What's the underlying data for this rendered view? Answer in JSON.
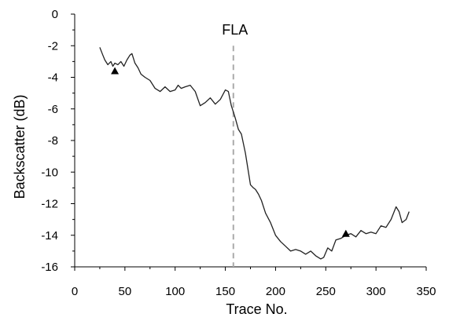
{
  "chart_data": {
    "type": "line",
    "title": "",
    "xlabel": "Trace No.",
    "ylabel": "Backscatter (dB)",
    "xlim": [
      0,
      350
    ],
    "ylim": [
      -16,
      0
    ],
    "x_ticks": [
      0,
      50,
      100,
      150,
      200,
      250,
      300,
      350
    ],
    "y_ticks": [
      0,
      -2,
      -4,
      -6,
      -8,
      -10,
      -12,
      -14,
      -16
    ],
    "grid": false,
    "legend": "none",
    "line_color": "#222222",
    "series": [
      {
        "x": [
          25,
          28,
          30,
          33,
          36,
          38,
          40,
          43,
          46,
          49,
          52,
          55,
          57,
          60,
          63,
          66,
          70,
          75,
          80,
          85,
          90,
          95,
          100,
          103,
          106,
          110,
          115,
          120,
          125,
          130,
          135,
          140,
          145,
          150,
          153,
          156,
          158,
          160,
          163,
          166,
          170,
          175,
          178,
          180,
          183,
          186,
          190,
          195,
          200,
          205,
          210,
          215,
          220,
          225,
          230,
          235,
          240,
          245,
          248,
          252,
          256,
          260,
          265,
          270,
          275,
          280,
          285,
          290,
          295,
          300,
          305,
          310,
          315,
          320,
          323,
          326,
          330,
          333
        ],
        "y": [
          -2.1,
          -2.6,
          -2.9,
          -3.2,
          -3.0,
          -3.3,
          -3.1,
          -3.2,
          -3.0,
          -3.3,
          -2.9,
          -2.6,
          -2.5,
          -3.1,
          -3.4,
          -3.8,
          -4.0,
          -4.2,
          -4.7,
          -4.9,
          -4.6,
          -4.9,
          -4.8,
          -4.5,
          -4.7,
          -4.6,
          -4.5,
          -4.9,
          -5.8,
          -5.6,
          -5.3,
          -5.7,
          -5.4,
          -4.8,
          -4.9,
          -5.8,
          -6.2,
          -6.6,
          -7.3,
          -7.6,
          -8.8,
          -10.8,
          -11.0,
          -11.1,
          -11.4,
          -11.8,
          -12.6,
          -13.2,
          -14.0,
          -14.4,
          -14.7,
          -15.0,
          -14.9,
          -15.0,
          -15.2,
          -15.0,
          -15.3,
          -15.5,
          -15.4,
          -14.8,
          -15.0,
          -14.3,
          -14.2,
          -14.0,
          -13.9,
          -14.1,
          -13.7,
          -13.9,
          -13.8,
          -13.9,
          -13.4,
          -13.5,
          -13.0,
          -12.2,
          -12.5,
          -13.2,
          -13.0,
          -12.5
        ]
      }
    ],
    "vline": {
      "x": 158,
      "label": "FLA",
      "color": "#aaaaaa"
    },
    "markers": [
      {
        "x": 40,
        "y": -3.6,
        "shape": "triangle"
      },
      {
        "x": 270,
        "y": -13.9,
        "shape": "triangle"
      }
    ]
  }
}
